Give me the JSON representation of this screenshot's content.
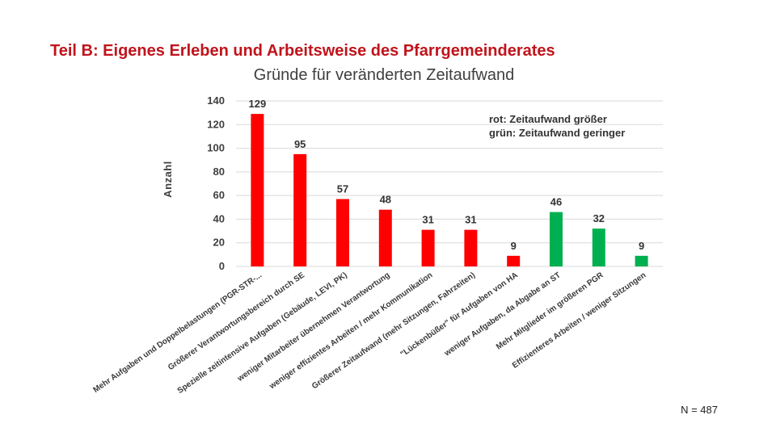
{
  "chart_data": {
    "type": "bar",
    "title": "Teil B: Eigenes Erleben und Arbeitsweise des Pfarrgemeinderates",
    "subtitle": "Gründe für veränderten Zeitaufwand",
    "ylabel": "Anzahl",
    "xlabel": "",
    "ylim": [
      0,
      140
    ],
    "yticks": [
      0,
      20,
      40,
      60,
      80,
      100,
      120,
      140
    ],
    "grid": true,
    "categories": [
      "Mehr Aufgaben und Doppelbelastungen (PGR-STR-...",
      "Größerer Verantwortungsbereich durch SE",
      "Spezielle zeitintensive Aufgaben (Gebäude, LEVI, PK)",
      "weniger Mitarbeiter übernehmen Verantwortung",
      "weniger effizientes Arbeiten / mehr Kommunikation",
      "Größerer Zeitaufwand (mehr Sitzungen, Fahrzeiten)",
      "\"Lückenbüßer\" für Aufgaben von HA",
      "weniger Aufgaben, da Abgabe an ST",
      "Mehr Mitglieder im größeren PGR",
      "Effizienteres Arbeiten / weniger Sitzungen"
    ],
    "values": [
      129,
      95,
      57,
      48,
      31,
      31,
      9,
      46,
      32,
      9
    ],
    "series_type": [
      "größer",
      "größer",
      "größer",
      "größer",
      "größer",
      "größer",
      "größer",
      "geringer",
      "geringer",
      "geringer"
    ],
    "legend": [
      "rot: Zeitaufwand größer",
      "grün:  Zeitaufwand geringer"
    ],
    "colors": {
      "größer": "#ff0000",
      "geringer": "#00b050"
    },
    "footnote": "N = 487"
  }
}
